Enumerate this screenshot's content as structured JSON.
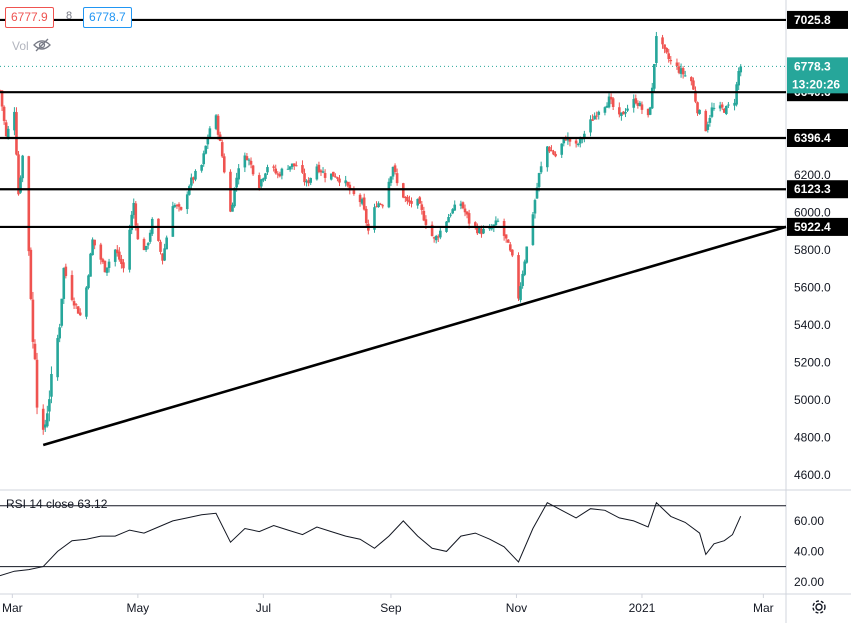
{
  "header": {
    "bid": "6777.9",
    "spread": "8",
    "ask": "6778.7",
    "volume_label": "Vol"
  },
  "colors": {
    "up": "#26a69a",
    "down": "#ef5350",
    "line": "#000000",
    "last_price": "#26a69a",
    "countdown_bg": "#26a69a",
    "axis_text": "#131722",
    "grid_border": "#d1d4dc"
  },
  "icons": {
    "eye": "eye-slash-icon",
    "settings": "gear-icon"
  },
  "chart_data": [
    {
      "type": "candlestick",
      "title": "",
      "ylim": [
        4520,
        7100
      ],
      "y_ticks": [
        4600,
        4800,
        5000,
        5200,
        5400,
        5600,
        5800,
        6000,
        6200
      ],
      "y_tick_labels": [
        "4600.0",
        "4800.0",
        "5000.0",
        "5200.0",
        "5400.0",
        "5600.0",
        "5800.0",
        "6000.0",
        "6200.0"
      ],
      "x_labels": [
        "Mar",
        "May",
        "Jul",
        "Sep",
        "Nov",
        "2021",
        "Mar"
      ],
      "x_label_dates": [
        "2020-03-01",
        "2020-05-01",
        "2020-07-01",
        "2020-09-01",
        "2020-11-01",
        "2021-01-01",
        "2021-03-01"
      ],
      "x_range": [
        "2020-02-24",
        "2021-03-12"
      ],
      "horizontal_levels": [
        {
          "value": 7025.8,
          "label": "7025.8"
        },
        {
          "value": 6640.6,
          "label": "6640.6"
        },
        {
          "value": 6396.4,
          "label": "6396.4"
        },
        {
          "value": 6123.3,
          "label": "6123.3"
        },
        {
          "value": 5922.4,
          "label": "5922.4"
        }
      ],
      "trendline": {
        "from": {
          "date": "2020-03-16",
          "value": 4760
        },
        "to": {
          "date": "2021-03-12",
          "value": 5922.4
        }
      },
      "last_price": {
        "value": 6778.3,
        "label": "6778.3"
      },
      "countdown": "13:20:26",
      "path": [
        [
          "2020-02-24",
          6650
        ],
        [
          "2020-02-27",
          6400
        ],
        [
          "2020-03-02",
          6550
        ],
        [
          "2020-03-04",
          6100
        ],
        [
          "2020-03-06",
          6300
        ],
        [
          "2020-03-09",
          5800
        ],
        [
          "2020-03-11",
          5300
        ],
        [
          "2020-03-12",
          5250
        ],
        [
          "2020-03-13",
          5000
        ],
        [
          "2020-03-16",
          4800
        ],
        [
          "2020-03-18",
          4950
        ],
        [
          "2020-03-20",
          5100
        ],
        [
          "2020-03-24",
          5400
        ],
        [
          "2020-03-26",
          5700
        ],
        [
          "2020-03-30",
          5550
        ],
        [
          "2020-04-03",
          5450
        ],
        [
          "2020-04-06",
          5600
        ],
        [
          "2020-04-09",
          5850
        ],
        [
          "2020-04-15",
          5700
        ],
        [
          "2020-04-20",
          5800
        ],
        [
          "2020-04-24",
          5700
        ],
        [
          "2020-04-29",
          6050
        ],
        [
          "2020-05-01",
          5850
        ],
        [
          "2020-05-05",
          5800
        ],
        [
          "2020-05-08",
          5950
        ],
        [
          "2020-05-13",
          5750
        ],
        [
          "2020-05-18",
          6050
        ],
        [
          "2020-05-22",
          6000
        ],
        [
          "2020-05-26",
          6150
        ],
        [
          "2020-06-01",
          6250
        ],
        [
          "2020-06-05",
          6450
        ],
        [
          "2020-06-08",
          6500
        ],
        [
          "2020-06-11",
          6300
        ],
        [
          "2020-06-15",
          6000
        ],
        [
          "2020-06-19",
          6250
        ],
        [
          "2020-06-23",
          6300
        ],
        [
          "2020-06-29",
          6150
        ],
        [
          "2020-07-03",
          6250
        ],
        [
          "2020-07-08",
          6200
        ],
        [
          "2020-07-13",
          6250
        ],
        [
          "2020-07-17",
          6250
        ],
        [
          "2020-07-22",
          6150
        ],
        [
          "2020-07-27",
          6250
        ],
        [
          "2020-07-31",
          6200
        ],
        [
          "2020-08-05",
          6200
        ],
        [
          "2020-08-10",
          6150
        ],
        [
          "2020-08-13",
          6100
        ],
        [
          "2020-08-18",
          6050
        ],
        [
          "2020-08-21",
          5900
        ],
        [
          "2020-08-25",
          6050
        ],
        [
          "2020-08-28",
          6050
        ],
        [
          "2020-09-02",
          6250
        ],
        [
          "2020-09-04",
          6150
        ],
        [
          "2020-09-09",
          6050
        ],
        [
          "2020-09-14",
          6050
        ],
        [
          "2020-09-18",
          5950
        ],
        [
          "2020-09-22",
          5850
        ],
        [
          "2020-09-25",
          5900
        ],
        [
          "2020-09-30",
          6000
        ],
        [
          "2020-10-05",
          6050
        ],
        [
          "2020-10-09",
          5950
        ],
        [
          "2020-10-14",
          5900
        ],
        [
          "2020-10-19",
          5900
        ],
        [
          "2020-10-23",
          5950
        ],
        [
          "2020-10-27",
          5850
        ],
        [
          "2020-10-30",
          5750
        ],
        [
          "2020-11-02",
          5550
        ],
        [
          "2020-11-05",
          5750
        ],
        [
          "2020-11-09",
          6000
        ],
        [
          "2020-11-12",
          6200
        ],
        [
          "2020-11-16",
          6350
        ],
        [
          "2020-11-20",
          6300
        ],
        [
          "2020-11-25",
          6400
        ],
        [
          "2020-11-30",
          6350
        ],
        [
          "2020-12-03",
          6400
        ],
        [
          "2020-12-08",
          6500
        ],
        [
          "2020-12-11",
          6550
        ],
        [
          "2020-12-16",
          6600
        ],
        [
          "2020-12-21",
          6500
        ],
        [
          "2020-12-24",
          6550
        ],
        [
          "2020-12-29",
          6600
        ],
        [
          "2021-01-04",
          6500
        ],
        [
          "2021-01-06",
          6650
        ],
        [
          "2021-01-08",
          6950
        ],
        [
          "2021-01-12",
          6850
        ],
        [
          "2021-01-15",
          6800
        ],
        [
          "2021-01-20",
          6750
        ],
        [
          "2021-01-25",
          6700
        ],
        [
          "2021-01-28",
          6550
        ],
        [
          "2021-02-01",
          6450
        ],
        [
          "2021-02-04",
          6550
        ],
        [
          "2021-02-08",
          6550
        ],
        [
          "2021-02-11",
          6550
        ],
        [
          "2021-02-15",
          6600
        ],
        [
          "2021-02-17",
          6750
        ],
        [
          "2021-02-18",
          6778.3
        ]
      ]
    },
    {
      "type": "line",
      "title": "RSI 14 close",
      "last_value_label": "63.12",
      "ylim": [
        12,
        79
      ],
      "y_ticks": [
        20,
        40,
        60
      ],
      "y_tick_labels": [
        "20.00",
        "40.00",
        "60.00"
      ],
      "bands": [
        30,
        70
      ],
      "path": [
        [
          "2020-02-24",
          24
        ],
        [
          "2020-03-02",
          27
        ],
        [
          "2020-03-09",
          28
        ],
        [
          "2020-03-16",
          30
        ],
        [
          "2020-03-23",
          40
        ],
        [
          "2020-03-30",
          47
        ],
        [
          "2020-04-06",
          48
        ],
        [
          "2020-04-13",
          50
        ],
        [
          "2020-04-20",
          50
        ],
        [
          "2020-04-27",
          54
        ],
        [
          "2020-05-04",
          52
        ],
        [
          "2020-05-11",
          56
        ],
        [
          "2020-05-18",
          60
        ],
        [
          "2020-05-25",
          62
        ],
        [
          "2020-06-01",
          64
        ],
        [
          "2020-06-08",
          65
        ],
        [
          "2020-06-15",
          46
        ],
        [
          "2020-06-22",
          55
        ],
        [
          "2020-06-29",
          53
        ],
        [
          "2020-07-06",
          57
        ],
        [
          "2020-07-13",
          54
        ],
        [
          "2020-07-20",
          51
        ],
        [
          "2020-07-27",
          56
        ],
        [
          "2020-08-03",
          53
        ],
        [
          "2020-08-10",
          50
        ],
        [
          "2020-08-17",
          48
        ],
        [
          "2020-08-24",
          42
        ],
        [
          "2020-08-31",
          50
        ],
        [
          "2020-09-07",
          60
        ],
        [
          "2020-09-14",
          50
        ],
        [
          "2020-09-21",
          42
        ],
        [
          "2020-09-28",
          40
        ],
        [
          "2020-10-05",
          50
        ],
        [
          "2020-10-12",
          52
        ],
        [
          "2020-10-19",
          48
        ],
        [
          "2020-10-26",
          43
        ],
        [
          "2020-11-02",
          33
        ],
        [
          "2020-11-09",
          55
        ],
        [
          "2020-11-16",
          72
        ],
        [
          "2020-11-23",
          67
        ],
        [
          "2020-11-30",
          62
        ],
        [
          "2020-12-07",
          68
        ],
        [
          "2020-12-14",
          67
        ],
        [
          "2020-12-21",
          62
        ],
        [
          "2020-12-28",
          60
        ],
        [
          "2021-01-04",
          56
        ],
        [
          "2021-01-08",
          72
        ],
        [
          "2021-01-15",
          63
        ],
        [
          "2021-01-22",
          59
        ],
        [
          "2021-01-29",
          52
        ],
        [
          "2021-02-01",
          38
        ],
        [
          "2021-02-05",
          45
        ],
        [
          "2021-02-10",
          47
        ],
        [
          "2021-02-14",
          51
        ],
        [
          "2021-02-18",
          63.12
        ]
      ]
    }
  ]
}
